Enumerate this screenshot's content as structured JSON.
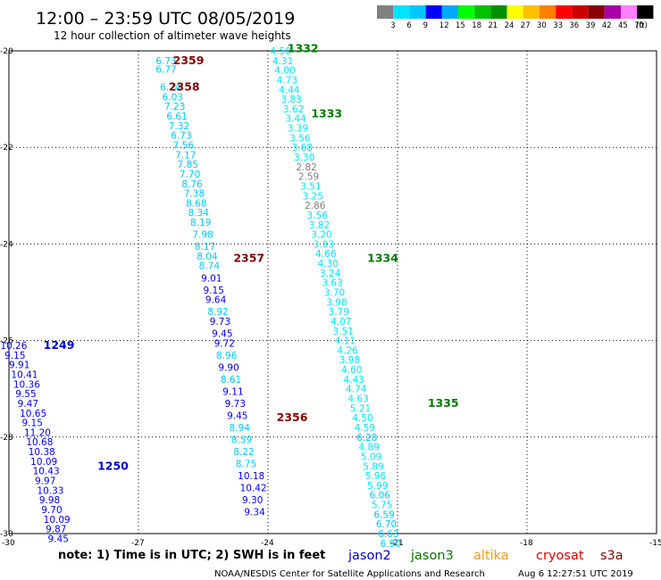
{
  "header": {
    "title": "12:00 – 23:59 UTC 08/05/2019",
    "subtitle": "12 hour collection of altimeter wave heights"
  },
  "color_scale": {
    "unit": "(ft)",
    "labels": [
      "3",
      "6",
      "9",
      "12",
      "15",
      "18",
      "21",
      "24",
      "27",
      "30",
      "33",
      "36",
      "39",
      "42",
      "45",
      "70"
    ],
    "colors": [
      "#808080",
      "#00e5ff",
      "#00c8ff",
      "#0000ff",
      "#00aaff",
      "#00ff00",
      "#00c000",
      "#009000",
      "#ffff00",
      "#ffc000",
      "#ff8000",
      "#ff0000",
      "#cc0000",
      "#880000",
      "#aa00aa",
      "#ff80ff",
      "#000000"
    ]
  },
  "note": "note:  1) Time is in UTC;  2) SWH is in feet",
  "legend": [
    {
      "label": "jason2",
      "color": "#0000cc"
    },
    {
      "label": "jason3",
      "color": "#007800"
    },
    {
      "label": "altika",
      "color": "#ff9900"
    },
    {
      "label": "cryosat",
      "color": "#dd0000"
    },
    {
      "label": "s3a",
      "color": "#880000"
    }
  ],
  "footer": {
    "center": "NOAA/NESDIS Center for Satellite Applications and Research",
    "timestamp": "Aug  6 12:27:51 UTC 2019"
  },
  "chart_data": {
    "type": "scatter",
    "title": "12:00 – 23:59 UTC 08/05/2019",
    "xlim": [
      -30,
      -15
    ],
    "ylim": [
      -30,
      -20
    ],
    "xticks": [
      -30,
      -27,
      -24,
      -21,
      -18,
      -15
    ],
    "yticks": [
      -20,
      -22,
      -24,
      -26,
      -28,
      -30
    ],
    "grid": true,
    "pass_labels": [
      {
        "text": "2359",
        "lon": -26.2,
        "lat": -20.2,
        "color": "#880000"
      },
      {
        "text": "2358",
        "lon": -26.3,
        "lat": -20.75,
        "color": "#880000"
      },
      {
        "text": "2357",
        "lon": -24.8,
        "lat": -24.3,
        "color": "#880000"
      },
      {
        "text": "2356",
        "lon": -23.8,
        "lat": -27.6,
        "color": "#880000"
      },
      {
        "text": "1332",
        "lon": -23.55,
        "lat": -19.95,
        "color": "#007800"
      },
      {
        "text": "1333",
        "lon": -23.0,
        "lat": -21.3,
        "color": "#007800"
      },
      {
        "text": "1334",
        "lon": -21.7,
        "lat": -24.3,
        "color": "#007800"
      },
      {
        "text": "1335",
        "lon": -20.3,
        "lat": -27.3,
        "color": "#007800"
      },
      {
        "text": "1249",
        "lon": -29.2,
        "lat": -26.1,
        "color": "#0000cc"
      },
      {
        "text": "1250",
        "lon": -27.95,
        "lat": -28.6,
        "color": "#0000cc"
      }
    ],
    "series": [
      {
        "points": [
          {
            "lon": -26.6,
            "lat": -20.2,
            "value": "6.73",
            "color": "#00c8ff"
          },
          {
            "lon": -26.6,
            "lat": -20.38,
            "value": "6.77",
            "color": "#00c8ff"
          },
          {
            "lon": -26.5,
            "lat": -20.75,
            "value": "6.74",
            "color": "#00c8ff"
          },
          {
            "lon": -26.45,
            "lat": -20.95,
            "value": "6.03",
            "color": "#00c8ff"
          },
          {
            "lon": -26.4,
            "lat": -21.15,
            "value": "7.23",
            "color": "#00c8ff"
          },
          {
            "lon": -26.35,
            "lat": -21.35,
            "value": "6.61",
            "color": "#00c8ff"
          },
          {
            "lon": -26.3,
            "lat": -21.55,
            "value": "7.32",
            "color": "#00c8ff"
          },
          {
            "lon": -26.25,
            "lat": -21.75,
            "value": "6.73",
            "color": "#00c8ff"
          },
          {
            "lon": -26.2,
            "lat": -21.95,
            "value": "7.56",
            "color": "#00c8ff"
          },
          {
            "lon": -26.15,
            "lat": -22.15,
            "value": "7.17",
            "color": "#00c8ff"
          },
          {
            "lon": -26.1,
            "lat": -22.35,
            "value": "7.85",
            "color": "#00c8ff"
          },
          {
            "lon": -26.05,
            "lat": -22.55,
            "value": "7.70",
            "color": "#00c8ff"
          },
          {
            "lon": -26.0,
            "lat": -22.75,
            "value": "8.76",
            "color": "#00c8ff"
          },
          {
            "lon": -25.95,
            "lat": -22.95,
            "value": "7.38",
            "color": "#00c8ff"
          },
          {
            "lon": -25.9,
            "lat": -23.15,
            "value": "8.68",
            "color": "#00c8ff"
          },
          {
            "lon": -25.85,
            "lat": -23.35,
            "value": "8.34",
            "color": "#00c8ff"
          },
          {
            "lon": -25.8,
            "lat": -23.55,
            "value": "8.19",
            "color": "#00c8ff"
          },
          {
            "lon": -25.75,
            "lat": -23.8,
            "value": "7.98",
            "color": "#00c8ff"
          },
          {
            "lon": -25.7,
            "lat": -24.05,
            "value": "8.17",
            "color": "#00c8ff"
          },
          {
            "lon": -25.65,
            "lat": -24.25,
            "value": "8.04",
            "color": "#00c8ff"
          },
          {
            "lon": -25.6,
            "lat": -24.45,
            "value": "8.74",
            "color": "#00c8ff"
          },
          {
            "lon": -25.55,
            "lat": -24.7,
            "value": "9.01",
            "color": "#0000ff"
          },
          {
            "lon": -25.5,
            "lat": -24.95,
            "value": "9.15",
            "color": "#0000ff"
          },
          {
            "lon": -25.45,
            "lat": -25.15,
            "value": "9.64",
            "color": "#0000ff"
          },
          {
            "lon": -25.4,
            "lat": -25.4,
            "value": "8.92",
            "color": "#00c8ff"
          },
          {
            "lon": -25.35,
            "lat": -25.6,
            "value": "9.73",
            "color": "#0000ff"
          },
          {
            "lon": -25.3,
            "lat": -25.85,
            "value": "9.45",
            "color": "#0000ff"
          },
          {
            "lon": -25.25,
            "lat": -26.05,
            "value": "9.72",
            "color": "#0000ff"
          },
          {
            "lon": -25.2,
            "lat": -26.3,
            "value": "8.96",
            "color": "#00c8ff"
          },
          {
            "lon": -25.15,
            "lat": -26.55,
            "value": "9.90",
            "color": "#0000ff"
          },
          {
            "lon": -25.1,
            "lat": -26.8,
            "value": "8.61",
            "color": "#00c8ff"
          },
          {
            "lon": -25.05,
            "lat": -27.05,
            "value": "9.11",
            "color": "#0000ff"
          },
          {
            "lon": -25.0,
            "lat": -27.3,
            "value": "9.73",
            "color": "#0000ff"
          },
          {
            "lon": -24.95,
            "lat": -27.55,
            "value": "9.45",
            "color": "#0000ff"
          },
          {
            "lon": -24.9,
            "lat": -27.8,
            "value": "8.94",
            "color": "#00c8ff"
          },
          {
            "lon": -24.85,
            "lat": -28.05,
            "value": "8.59",
            "color": "#00c8ff"
          },
          {
            "lon": -24.8,
            "lat": -28.3,
            "value": "8.22",
            "color": "#00c8ff"
          },
          {
            "lon": -24.75,
            "lat": -28.55,
            "value": "8.75",
            "color": "#00c8ff"
          },
          {
            "lon": -24.7,
            "lat": -28.8,
            "value": "10.18",
            "color": "#0000ff"
          },
          {
            "lon": -24.65,
            "lat": -29.05,
            "value": "10.42",
            "color": "#0000ff"
          },
          {
            "lon": -24.6,
            "lat": -29.3,
            "value": "9.30",
            "color": "#0000ff"
          },
          {
            "lon": -24.55,
            "lat": -29.55,
            "value": "9.34",
            "color": "#0000ff"
          }
        ]
      },
      {
        "points": [
          {
            "lon": -23.95,
            "lat": -20.0,
            "value": "4.50",
            "color": "#00e5ff"
          },
          {
            "lon": -23.9,
            "lat": -20.2,
            "value": "4.31",
            "color": "#00e5ff"
          },
          {
            "lon": -23.85,
            "lat": -20.4,
            "value": "4.00",
            "color": "#00e5ff"
          },
          {
            "lon": -23.8,
            "lat": -20.6,
            "value": "4.73",
            "color": "#00e5ff"
          },
          {
            "lon": -23.75,
            "lat": -20.8,
            "value": "4.44",
            "color": "#00e5ff"
          },
          {
            "lon": -23.7,
            "lat": -21.0,
            "value": "3.83",
            "color": "#00e5ff"
          },
          {
            "lon": -23.65,
            "lat": -21.2,
            "value": "3.62",
            "color": "#00e5ff"
          },
          {
            "lon": -23.6,
            "lat": -21.4,
            "value": "3.44",
            "color": "#00e5ff"
          },
          {
            "lon": -23.55,
            "lat": -21.6,
            "value": "3.39",
            "color": "#00e5ff"
          },
          {
            "lon": -23.5,
            "lat": -21.8,
            "value": "3.56",
            "color": "#00e5ff"
          },
          {
            "lon": -23.45,
            "lat": -22.0,
            "value": "3.68",
            "color": "#00e5ff"
          },
          {
            "lon": -23.4,
            "lat": -22.2,
            "value": "3.30",
            "color": "#00e5ff"
          },
          {
            "lon": -23.35,
            "lat": -22.4,
            "value": "2.82",
            "color": "#808080"
          },
          {
            "lon": -23.3,
            "lat": -22.6,
            "value": "2.59",
            "color": "#808080"
          },
          {
            "lon": -23.25,
            "lat": -22.8,
            "value": "3.51",
            "color": "#00e5ff"
          },
          {
            "lon": -23.2,
            "lat": -23.0,
            "value": "3.25",
            "color": "#00e5ff"
          },
          {
            "lon": -23.15,
            "lat": -23.2,
            "value": "2.86",
            "color": "#808080"
          },
          {
            "lon": -23.1,
            "lat": -23.4,
            "value": "3.56",
            "color": "#00e5ff"
          },
          {
            "lon": -23.05,
            "lat": -23.6,
            "value": "3.82",
            "color": "#00e5ff"
          },
          {
            "lon": -23.0,
            "lat": -23.8,
            "value": "3.20",
            "color": "#00e5ff"
          },
          {
            "lon": -22.95,
            "lat": -24.0,
            "value": "3.83",
            "color": "#00e5ff"
          },
          {
            "lon": -22.9,
            "lat": -24.2,
            "value": "4.66",
            "color": "#00e5ff"
          },
          {
            "lon": -22.85,
            "lat": -24.4,
            "value": "4.30",
            "color": "#00e5ff"
          },
          {
            "lon": -22.8,
            "lat": -24.6,
            "value": "3.24",
            "color": "#00e5ff"
          },
          {
            "lon": -22.75,
            "lat": -24.8,
            "value": "3.63",
            "color": "#00e5ff"
          },
          {
            "lon": -22.7,
            "lat": -25.0,
            "value": "3.70",
            "color": "#00e5ff"
          },
          {
            "lon": -22.65,
            "lat": -25.2,
            "value": "3.98",
            "color": "#00e5ff"
          },
          {
            "lon": -22.6,
            "lat": -25.4,
            "value": "3.79",
            "color": "#00e5ff"
          },
          {
            "lon": -22.55,
            "lat": -25.6,
            "value": "4.07",
            "color": "#00e5ff"
          },
          {
            "lon": -22.5,
            "lat": -25.8,
            "value": "3.51",
            "color": "#00e5ff"
          },
          {
            "lon": -22.45,
            "lat": -26.0,
            "value": "4.11",
            "color": "#00e5ff"
          },
          {
            "lon": -22.4,
            "lat": -26.2,
            "value": "4.26",
            "color": "#00e5ff"
          },
          {
            "lon": -22.35,
            "lat": -26.4,
            "value": "3.98",
            "color": "#00e5ff"
          },
          {
            "lon": -22.3,
            "lat": -26.6,
            "value": "4.60",
            "color": "#00e5ff"
          },
          {
            "lon": -22.25,
            "lat": -26.8,
            "value": "4.43",
            "color": "#00e5ff"
          },
          {
            "lon": -22.2,
            "lat": -27.0,
            "value": "4.74",
            "color": "#00e5ff"
          },
          {
            "lon": -22.15,
            "lat": -27.2,
            "value": "4.63",
            "color": "#00e5ff"
          },
          {
            "lon": -22.1,
            "lat": -27.4,
            "value": "5.21",
            "color": "#00e5ff"
          },
          {
            "lon": -22.05,
            "lat": -27.6,
            "value": "4.50",
            "color": "#00e5ff"
          },
          {
            "lon": -22.0,
            "lat": -27.8,
            "value": "4.59",
            "color": "#00e5ff"
          },
          {
            "lon": -21.95,
            "lat": -28.0,
            "value": "6.28",
            "color": "#00c8ff"
          },
          {
            "lon": -21.9,
            "lat": -28.2,
            "value": "4.89",
            "color": "#00e5ff"
          },
          {
            "lon": -21.85,
            "lat": -28.4,
            "value": "5.09",
            "color": "#00e5ff"
          },
          {
            "lon": -21.8,
            "lat": -28.6,
            "value": "5.89",
            "color": "#00e5ff"
          },
          {
            "lon": -21.75,
            "lat": -28.8,
            "value": "5.96",
            "color": "#00e5ff"
          },
          {
            "lon": -21.7,
            "lat": -29.0,
            "value": "5.99",
            "color": "#00e5ff"
          },
          {
            "lon": -21.65,
            "lat": -29.2,
            "value": "6.06",
            "color": "#00c8ff"
          },
          {
            "lon": -21.6,
            "lat": -29.4,
            "value": "5.75",
            "color": "#00e5ff"
          },
          {
            "lon": -21.55,
            "lat": -29.6,
            "value": "6.59",
            "color": "#00c8ff"
          },
          {
            "lon": -21.5,
            "lat": -29.8,
            "value": "6.70",
            "color": "#00c8ff"
          },
          {
            "lon": -21.45,
            "lat": -30.0,
            "value": "6.63",
            "color": "#00c8ff"
          },
          {
            "lon": -21.4,
            "lat": -30.2,
            "value": "6.90",
            "color": "#00c8ff"
          }
        ]
      },
      {
        "points": [
          {
            "lon": -30.2,
            "lat": -26.1,
            "value": "10.26",
            "color": "#0000ff"
          },
          {
            "lon": -30.1,
            "lat": -26.3,
            "value": "9.15",
            "color": "#0000ff"
          },
          {
            "lon": -30.0,
            "lat": -26.5,
            "value": "9.91",
            "color": "#0000ff"
          },
          {
            "lon": -29.95,
            "lat": -26.7,
            "value": "10.41",
            "color": "#0000ff"
          },
          {
            "lon": -29.9,
            "lat": -26.9,
            "value": "10.36",
            "color": "#0000ff"
          },
          {
            "lon": -29.85,
            "lat": -27.1,
            "value": "9.55",
            "color": "#0000ff"
          },
          {
            "lon": -29.8,
            "lat": -27.3,
            "value": "9.47",
            "color": "#0000ff"
          },
          {
            "lon": -29.75,
            "lat": -27.5,
            "value": "10.65",
            "color": "#0000ff"
          },
          {
            "lon": -29.7,
            "lat": -27.7,
            "value": "9.15",
            "color": "#0000ff"
          },
          {
            "lon": -29.65,
            "lat": -27.9,
            "value": "11.20",
            "color": "#0000ff"
          },
          {
            "lon": -29.6,
            "lat": -28.1,
            "value": "10.68",
            "color": "#0000ff"
          },
          {
            "lon": -29.55,
            "lat": -28.3,
            "value": "10.38",
            "color": "#0000ff"
          },
          {
            "lon": -29.5,
            "lat": -28.5,
            "value": "10.09",
            "color": "#0000ff"
          },
          {
            "lon": -29.45,
            "lat": -28.7,
            "value": "10.43",
            "color": "#0000ff"
          },
          {
            "lon": -29.4,
            "lat": -28.9,
            "value": "9.97",
            "color": "#0000ff"
          },
          {
            "lon": -29.35,
            "lat": -29.1,
            "value": "10.33",
            "color": "#0000ff"
          },
          {
            "lon": -29.3,
            "lat": -29.3,
            "value": "9.98",
            "color": "#0000ff"
          },
          {
            "lon": -29.25,
            "lat": -29.5,
            "value": "9.70",
            "color": "#0000ff"
          },
          {
            "lon": -29.2,
            "lat": -29.7,
            "value": "10.09",
            "color": "#0000ff"
          },
          {
            "lon": -29.15,
            "lat": -29.9,
            "value": "9.87",
            "color": "#0000ff"
          },
          {
            "lon": -29.1,
            "lat": -30.1,
            "value": "9.45",
            "color": "#0000ff"
          }
        ]
      }
    ]
  }
}
